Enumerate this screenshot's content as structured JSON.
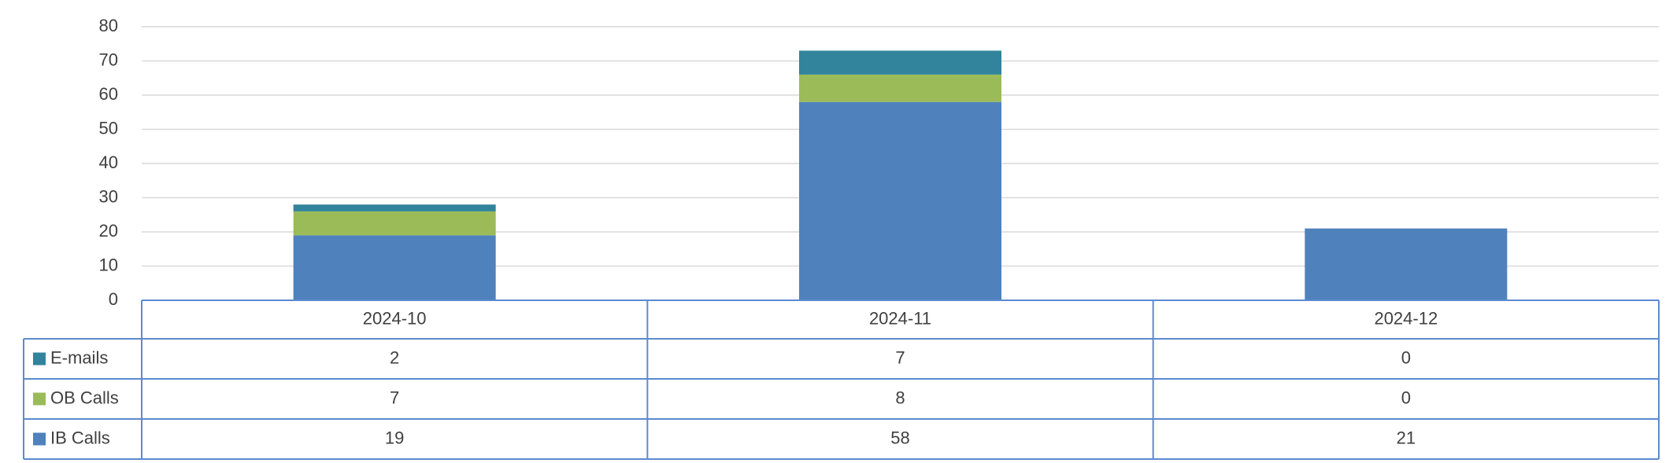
{
  "chart_data": {
    "type": "stacked_bar",
    "categories": [
      "2024-10",
      "2024-11",
      "2024-12"
    ],
    "series": [
      {
        "name": "IB Calls",
        "color": "#4f81bd",
        "values": [
          19,
          58,
          21
        ]
      },
      {
        "name": "OB Calls",
        "color": "#9bbb59",
        "values": [
          7,
          8,
          0
        ]
      },
      {
        "name": "E-mails",
        "color": "#31849b",
        "values": [
          2,
          7,
          0
        ]
      }
    ],
    "ylim": [
      0,
      80
    ],
    "yticks": [
      0,
      10,
      20,
      30,
      40,
      50,
      60,
      70,
      80
    ],
    "grid": true,
    "data_table": true
  }
}
